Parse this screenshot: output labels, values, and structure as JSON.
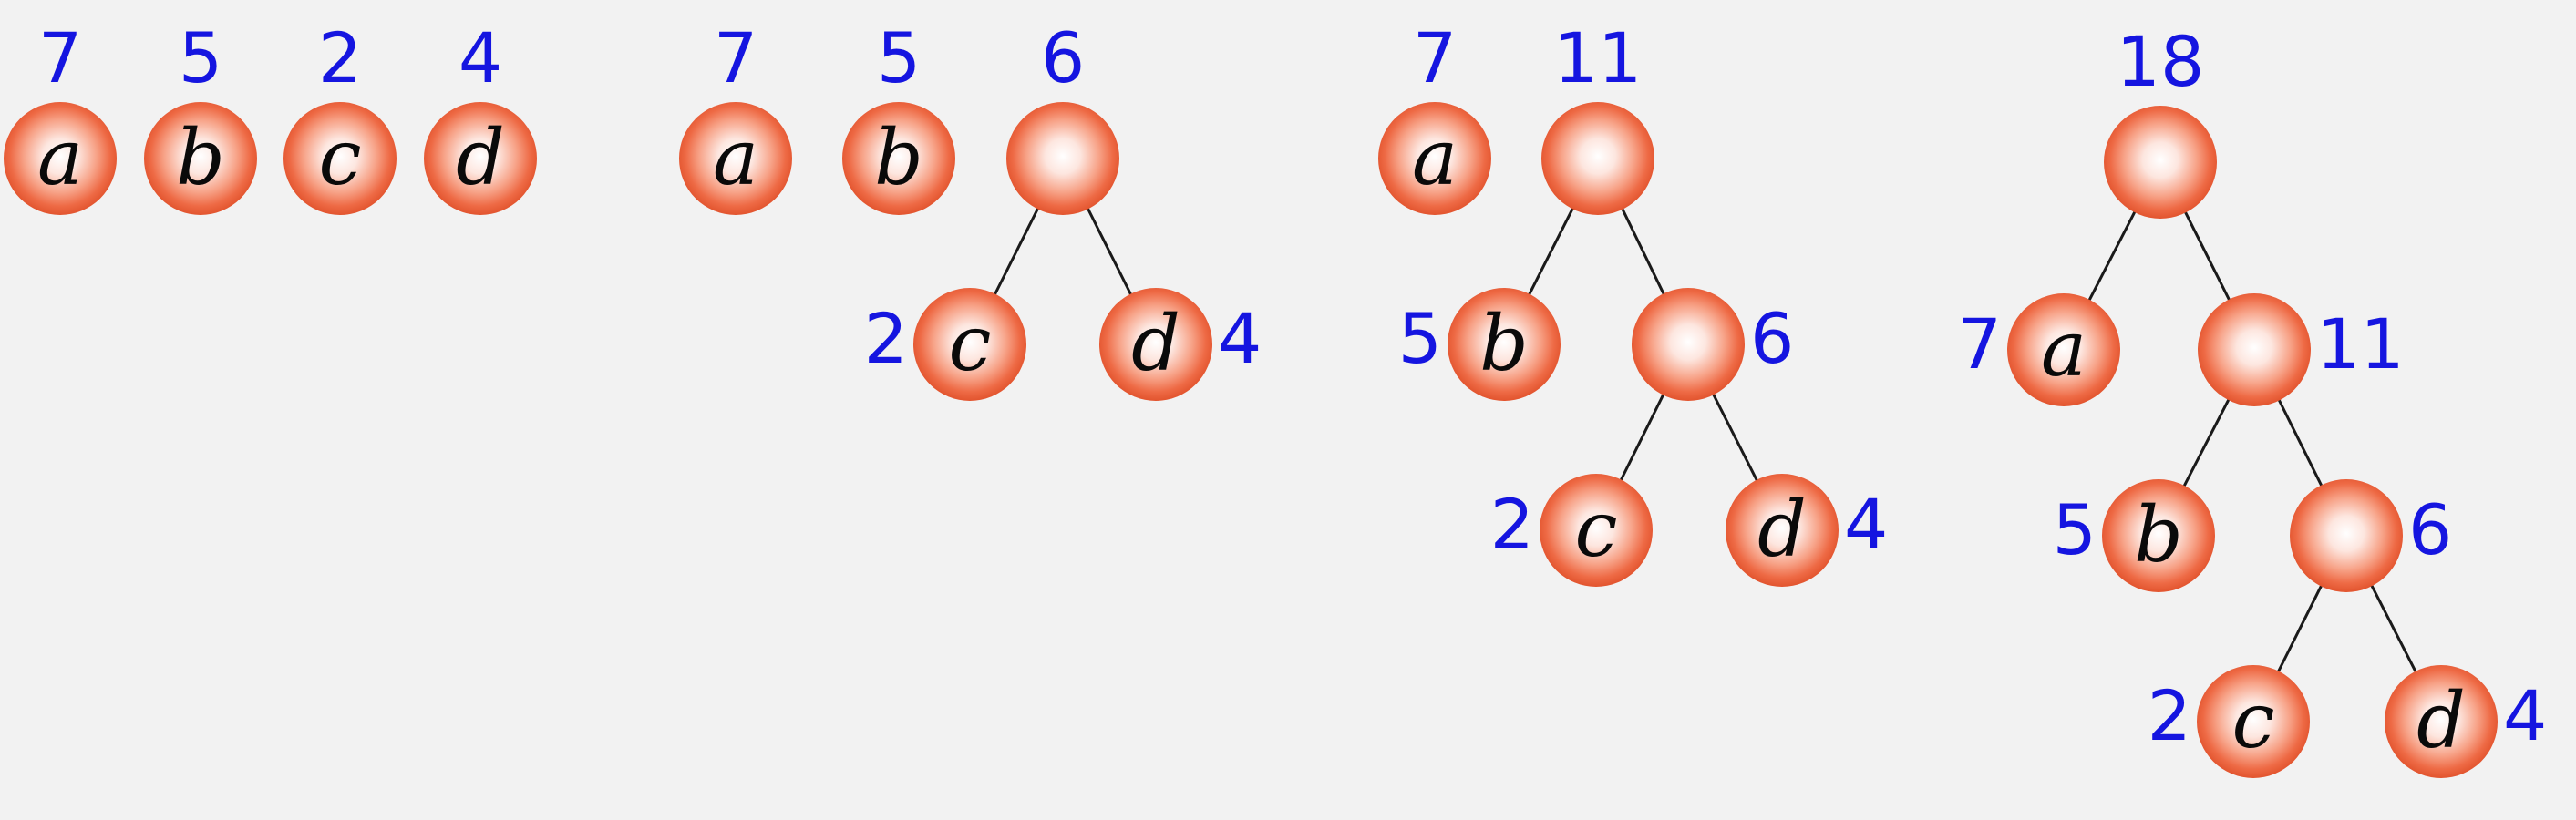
{
  "stages": [
    {
      "nodes": [
        {
          "id": "a",
          "symbol": "a",
          "weight": "7"
        },
        {
          "id": "b",
          "symbol": "b",
          "weight": "5"
        },
        {
          "id": "c",
          "symbol": "c",
          "weight": "2"
        },
        {
          "id": "d",
          "symbol": "d",
          "weight": "4"
        }
      ]
    },
    {
      "nodes": [
        {
          "id": "a",
          "symbol": "a",
          "weight": "7"
        },
        {
          "id": "b",
          "symbol": "b",
          "weight": "5"
        },
        {
          "id": "cd",
          "symbol": "",
          "weight": "6"
        },
        {
          "id": "c",
          "symbol": "c",
          "weight": "2"
        },
        {
          "id": "d",
          "symbol": "d",
          "weight": "4"
        }
      ]
    },
    {
      "nodes": [
        {
          "id": "a",
          "symbol": "a",
          "weight": "7"
        },
        {
          "id": "bcd",
          "symbol": "",
          "weight": "11"
        },
        {
          "id": "b",
          "symbol": "b",
          "weight": "5"
        },
        {
          "id": "cd",
          "symbol": "",
          "weight": "6"
        },
        {
          "id": "c",
          "symbol": "c",
          "weight": "2"
        },
        {
          "id": "d",
          "symbol": "d",
          "weight": "4"
        }
      ]
    },
    {
      "nodes": [
        {
          "id": "root",
          "symbol": "",
          "weight": "18"
        },
        {
          "id": "a",
          "symbol": "a",
          "weight": "7"
        },
        {
          "id": "bcd",
          "symbol": "",
          "weight": "11"
        },
        {
          "id": "b",
          "symbol": "b",
          "weight": "5"
        },
        {
          "id": "cd",
          "symbol": "",
          "weight": "6"
        },
        {
          "id": "c",
          "symbol": "c",
          "weight": "2"
        },
        {
          "id": "d",
          "symbol": "d",
          "weight": "4"
        }
      ]
    }
  ]
}
